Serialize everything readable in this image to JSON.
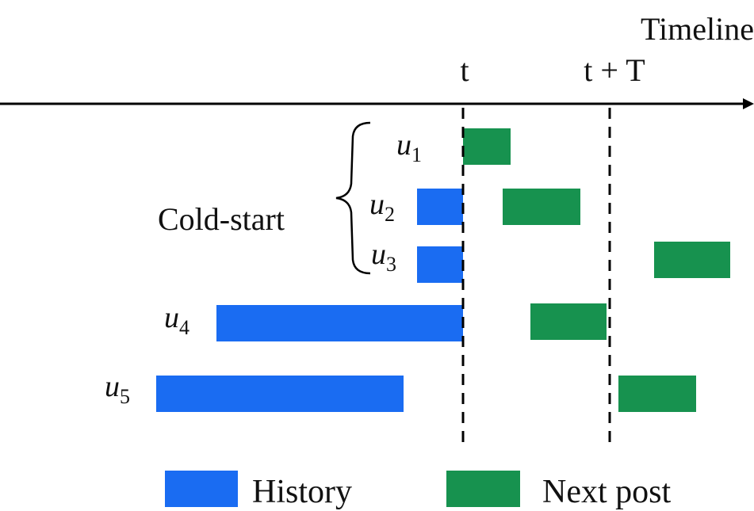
{
  "axis": {
    "label": "Timeline",
    "marker_t": "t",
    "marker_tT": "t + T"
  },
  "group": {
    "label": "Cold-start"
  },
  "users": [
    {
      "var": "u",
      "sub": "1"
    },
    {
      "var": "u",
      "sub": "2"
    },
    {
      "var": "u",
      "sub": "3"
    },
    {
      "var": "u",
      "sub": "4"
    },
    {
      "var": "u",
      "sub": "5"
    }
  ],
  "legend": {
    "history": "History",
    "next_post": "Next post"
  },
  "colors": {
    "history": "#1a6cf2",
    "next_post": "#17924f",
    "line": "#000000"
  }
}
